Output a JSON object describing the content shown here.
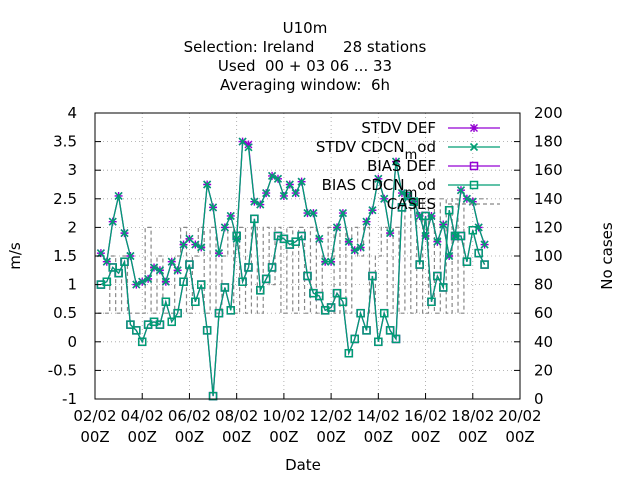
{
  "title_lines": [
    "U10m",
    "Selection: Ireland      28 stations",
    "Used  00 + 03 06 ... 33",
    "Averaging window:  6h"
  ],
  "colors": {
    "def": "#9400d3",
    "cdcn": "#009e73",
    "cases": "#888888"
  },
  "chart_data": {
    "type": "line",
    "title": "U10m",
    "xlabel": "Date",
    "ylabel": "m/s",
    "y2label": "No cases",
    "ylim": [
      -1,
      4
    ],
    "y2lim": [
      0,
      200
    ],
    "xlim": [
      "02/02 00Z",
      "20/02 00Z"
    ],
    "x_ticks": [
      {
        "date": "02/02",
        "hour": "00Z"
      },
      {
        "date": "04/02",
        "hour": "00Z"
      },
      {
        "date": "06/02",
        "hour": "00Z"
      },
      {
        "date": "08/02",
        "hour": "00Z"
      },
      {
        "date": "10/02",
        "hour": "00Z"
      },
      {
        "date": "12/02",
        "hour": "00Z"
      },
      {
        "date": "14/02",
        "hour": "00Z"
      },
      {
        "date": "16/02",
        "hour": "00Z"
      },
      {
        "date": "18/02",
        "hour": "00Z"
      },
      {
        "date": "20/02",
        "hour": "00Z"
      }
    ],
    "y_ticks": [
      "-1",
      "-0.5",
      "0",
      "0.5",
      "1",
      "1.5",
      "2",
      "2.5",
      "3",
      "3.5",
      "4"
    ],
    "y2_ticks": [
      "0",
      "20",
      "40",
      "60",
      "80",
      "100",
      "120",
      "140",
      "160",
      "180",
      "200"
    ],
    "x_start": "02/02 00Z",
    "x_end": "20/02 00Z",
    "x_count": 66,
    "grid": true,
    "legend_placement": "top-right",
    "series": [
      {
        "name": "STDV DEF",
        "axis": "y",
        "marker": "star",
        "color_key": "def",
        "values": [
          1.55,
          1.4,
          2.1,
          2.55,
          1.9,
          1.5,
          1.0,
          1.05,
          1.1,
          1.3,
          1.25,
          1.05,
          1.4,
          1.25,
          1.7,
          1.8,
          1.7,
          1.65,
          2.75,
          2.35,
          1.55,
          2.0,
          2.2,
          1.8,
          3.5,
          3.45,
          2.45,
          2.4,
          2.6,
          2.9,
          2.85,
          2.55,
          2.75,
          2.6,
          2.8,
          2.25,
          2.25,
          1.8,
          1.4,
          1.4,
          2.0,
          2.25,
          1.75,
          1.6,
          1.65,
          2.1,
          2.3,
          2.85,
          2.5,
          1.9,
          3.15,
          2.6,
          2.55,
          2.45,
          2.2,
          1.85,
          2.2,
          1.75,
          2.05,
          1.5,
          1.85,
          2.65,
          2.5,
          2.45,
          2.0,
          1.7
        ]
      },
      {
        "name": "STDV CDCN",
        "name_sub": "m",
        "name_suffix": "od",
        "axis": "y",
        "marker": "x",
        "color_key": "cdcn",
        "values": [
          1.55,
          1.4,
          2.1,
          2.55,
          1.9,
          1.5,
          1.0,
          1.05,
          1.1,
          1.3,
          1.25,
          1.05,
          1.4,
          1.25,
          1.7,
          1.8,
          1.7,
          1.65,
          2.75,
          2.35,
          1.55,
          2.0,
          2.2,
          1.8,
          3.5,
          3.4,
          2.45,
          2.4,
          2.6,
          2.9,
          2.85,
          2.55,
          2.75,
          2.6,
          2.8,
          2.25,
          2.25,
          1.8,
          1.4,
          1.4,
          2.0,
          2.25,
          1.75,
          1.6,
          1.65,
          2.1,
          2.3,
          2.85,
          2.5,
          1.9,
          3.15,
          2.6,
          2.55,
          2.45,
          2.2,
          1.85,
          2.2,
          1.75,
          2.05,
          1.5,
          1.85,
          2.65,
          2.5,
          2.45,
          2.0,
          1.7
        ]
      },
      {
        "name": "BIAS DEF",
        "axis": "y",
        "marker": "square",
        "color_key": "def",
        "values": [
          1.0,
          1.05,
          1.3,
          1.2,
          1.4,
          0.3,
          0.2,
          0.0,
          0.3,
          0.35,
          0.3,
          0.7,
          0.35,
          0.5,
          1.05,
          1.35,
          0.7,
          1.0,
          0.2,
          -0.95,
          0.5,
          0.95,
          0.55,
          1.85,
          1.05,
          1.3,
          2.15,
          0.9,
          1.1,
          1.3,
          1.85,
          1.8,
          1.7,
          1.75,
          1.85,
          1.15,
          0.85,
          0.8,
          0.55,
          0.6,
          0.85,
          0.7,
          -0.2,
          0.05,
          0.5,
          0.2,
          1.15,
          0.0,
          0.5,
          0.2,
          0.05,
          2.35,
          2.55,
          2.45,
          1.35,
          2.2,
          0.7,
          1.15,
          0.95,
          2.3,
          1.85,
          1.85,
          1.4,
          1.95,
          1.55,
          1.35
        ]
      },
      {
        "name": "BIAS CDCN",
        "name_sub": "m",
        "name_suffix": "od",
        "axis": "y",
        "marker": "square",
        "color_key": "cdcn",
        "values": [
          1.0,
          1.05,
          1.3,
          1.2,
          1.4,
          0.3,
          0.2,
          0.0,
          0.3,
          0.35,
          0.3,
          0.7,
          0.35,
          0.5,
          1.05,
          1.35,
          0.7,
          1.0,
          0.2,
          -0.95,
          0.5,
          0.95,
          0.55,
          1.85,
          1.05,
          1.3,
          2.15,
          0.9,
          1.1,
          1.3,
          1.85,
          1.8,
          1.7,
          1.75,
          1.85,
          1.15,
          0.85,
          0.8,
          0.55,
          0.6,
          0.85,
          0.7,
          -0.2,
          0.05,
          0.5,
          0.2,
          1.15,
          0.0,
          0.5,
          0.2,
          0.05,
          2.35,
          2.55,
          2.45,
          1.35,
          2.2,
          0.7,
          1.15,
          0.95,
          2.3,
          1.85,
          1.85,
          1.4,
          1.95,
          1.55,
          1.35
        ]
      },
      {
        "name": "CASES",
        "axis": "y2",
        "marker": "none",
        "color_key": "cases",
        "dash": true,
        "values": [
          60,
          60,
          100,
          60,
          100,
          60,
          60,
          60,
          120,
          60,
          100,
          60,
          60,
          100,
          120,
          60,
          100,
          120,
          60,
          120,
          60,
          100,
          120,
          60,
          120,
          60,
          120,
          60,
          120,
          80,
          120,
          60,
          120,
          60,
          120,
          60,
          120,
          60,
          100,
          120,
          60,
          120,
          60,
          120,
          100,
          120,
          60,
          100,
          120,
          60,
          120,
          60,
          140,
          60,
          140,
          60,
          140,
          60,
          140,
          60,
          140,
          60,
          140,
          140,
          140,
          140
        ]
      }
    ]
  }
}
